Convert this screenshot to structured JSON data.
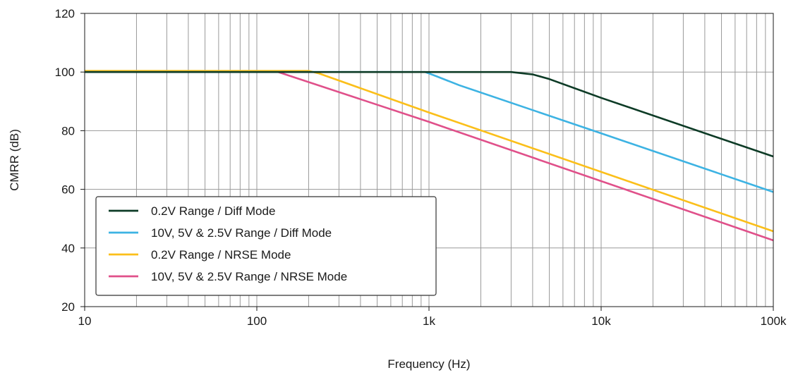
{
  "chart_data": {
    "type": "line",
    "xlabel": "Frequency (Hz)",
    "ylabel": "CMRR (dB)",
    "xscale": "log",
    "xlim": [
      10,
      100000
    ],
    "ylim": [
      20,
      120
    ],
    "grid": true,
    "legend_position": "bottom-left",
    "x_ticks": [
      {
        "value": 10,
        "label": "10"
      },
      {
        "value": 100,
        "label": "100"
      },
      {
        "value": 1000,
        "label": "1k"
      },
      {
        "value": 10000,
        "label": "10k"
      },
      {
        "value": 100000,
        "label": "100k"
      }
    ],
    "y_ticks": [
      {
        "value": 20,
        "label": "20"
      },
      {
        "value": 40,
        "label": "40"
      },
      {
        "value": 60,
        "label": "60"
      },
      {
        "value": 80,
        "label": "80"
      },
      {
        "value": 100,
        "label": "100"
      },
      {
        "value": 120,
        "label": "120"
      }
    ],
    "series": [
      {
        "name": "0.2V Range / Diff Mode",
        "color": "#0d3b26",
        "points": [
          [
            10,
            100
          ],
          [
            3000,
            100
          ],
          [
            4000,
            99.2
          ],
          [
            5000,
            97.6
          ],
          [
            10000,
            91.2
          ],
          [
            100000,
            71.2
          ]
        ]
      },
      {
        "name": "10V, 5V & 2.5V Range / Diff Mode",
        "color": "#3db3e3",
        "points": [
          [
            10,
            100
          ],
          [
            950,
            100
          ],
          [
            1100,
            98.6
          ],
          [
            1500,
            95.5
          ],
          [
            10000,
            79.1
          ],
          [
            100000,
            59.1
          ]
        ]
      },
      {
        "name": "0.2V Range / NRSE Mode",
        "color": "#fbbf1a",
        "points": [
          [
            10,
            100.4
          ],
          [
            200,
            100.4
          ],
          [
            230,
            99.5
          ],
          [
            1000,
            86.2
          ],
          [
            100000,
            45.7
          ]
        ]
      },
      {
        "name": "10V, 5V & 2.5V Range / NRSE Mode",
        "color": "#e0508a",
        "points": [
          [
            10,
            100.2
          ],
          [
            130,
            100.2
          ],
          [
            150,
            99
          ],
          [
            1000,
            83
          ],
          [
            100000,
            42.6
          ]
        ]
      }
    ]
  }
}
